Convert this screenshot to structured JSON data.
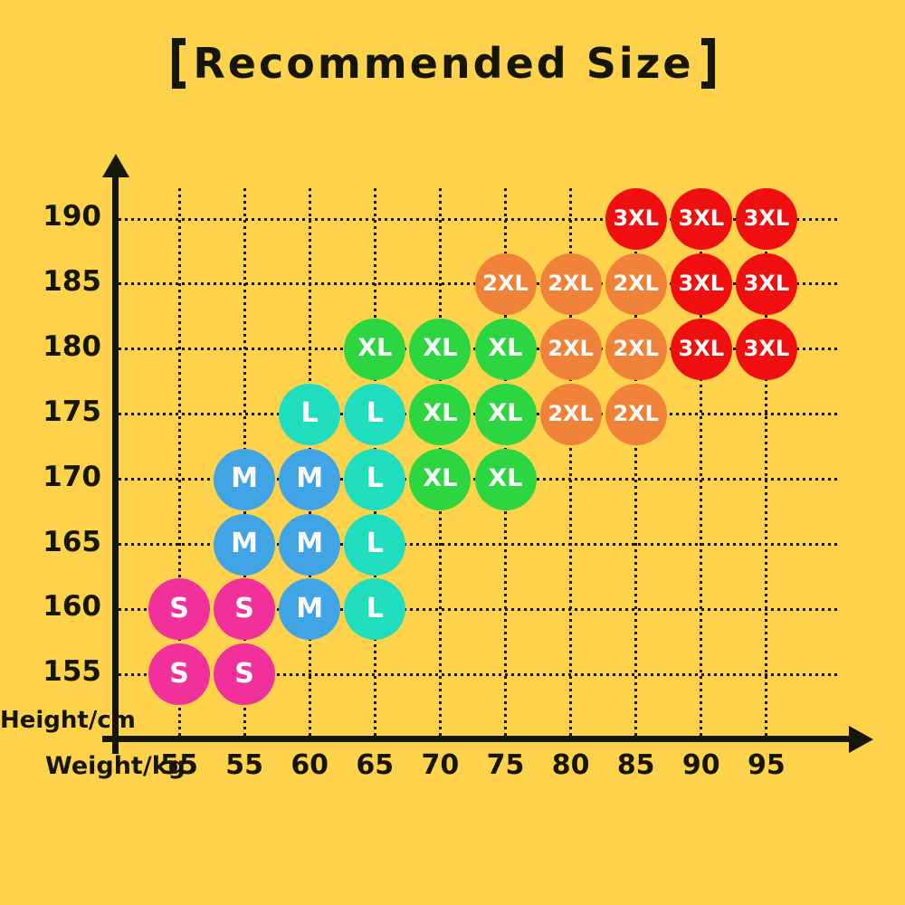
{
  "title": {
    "full": "【Recommended Size】",
    "display": "Recommended Size"
  },
  "axis_labels": {
    "y": "Height/cm",
    "x": "Weight/kg"
  },
  "colors": {
    "background": "#FFD24C",
    "ink": "#161606",
    "dot_text": "#FFFFFF",
    "S": "#F1309B",
    "M": "#41A5E5",
    "L": "#1FDEBE",
    "XL": "#2BD641",
    "2XL": "#EF8238",
    "3XL": "#F00F0F"
  },
  "chart_data": {
    "type": "scatter",
    "title": "【Recommended Size】",
    "xlabel": "Weight/kg",
    "ylabel": "Height/cm",
    "grid": true,
    "legend_position": "none",
    "x_tick_labels": [
      "55",
      "55",
      "60",
      "65",
      "70",
      "75",
      "80",
      "85",
      "90",
      "95"
    ],
    "y_tick_labels": [
      190,
      185,
      180,
      175,
      170,
      165,
      160,
      155
    ],
    "y_range": [
      155,
      190
    ],
    "sizes": [
      "S",
      "M",
      "L",
      "XL",
      "2XL",
      "3XL"
    ],
    "points": [
      {
        "height": 190,
        "col": 7,
        "weight": "85",
        "size": "3XL"
      },
      {
        "height": 190,
        "col": 8,
        "weight": "90",
        "size": "3XL"
      },
      {
        "height": 190,
        "col": 9,
        "weight": "95",
        "size": "3XL"
      },
      {
        "height": 185,
        "col": 5,
        "weight": "75",
        "size": "2XL"
      },
      {
        "height": 185,
        "col": 6,
        "weight": "80",
        "size": "2XL"
      },
      {
        "height": 185,
        "col": 7,
        "weight": "85",
        "size": "2XL"
      },
      {
        "height": 185,
        "col": 8,
        "weight": "90",
        "size": "3XL"
      },
      {
        "height": 185,
        "col": 9,
        "weight": "95",
        "size": "3XL"
      },
      {
        "height": 180,
        "col": 3,
        "weight": "65",
        "size": "XL"
      },
      {
        "height": 180,
        "col": 4,
        "weight": "70",
        "size": "XL"
      },
      {
        "height": 180,
        "col": 5,
        "weight": "75",
        "size": "XL"
      },
      {
        "height": 180,
        "col": 6,
        "weight": "80",
        "size": "2XL"
      },
      {
        "height": 180,
        "col": 7,
        "weight": "85",
        "size": "2XL"
      },
      {
        "height": 180,
        "col": 8,
        "weight": "90",
        "size": "3XL"
      },
      {
        "height": 180,
        "col": 9,
        "weight": "95",
        "size": "3XL"
      },
      {
        "height": 175,
        "col": 2,
        "weight": "60",
        "size": "L"
      },
      {
        "height": 175,
        "col": 3,
        "weight": "65",
        "size": "L"
      },
      {
        "height": 175,
        "col": 4,
        "weight": "70",
        "size": "XL"
      },
      {
        "height": 175,
        "col": 5,
        "weight": "75",
        "size": "XL"
      },
      {
        "height": 175,
        "col": 6,
        "weight": "80",
        "size": "2XL"
      },
      {
        "height": 175,
        "col": 7,
        "weight": "85",
        "size": "2XL"
      },
      {
        "height": 170,
        "col": 1,
        "weight": "55",
        "size": "M"
      },
      {
        "height": 170,
        "col": 2,
        "weight": "60",
        "size": "M"
      },
      {
        "height": 170,
        "col": 3,
        "weight": "65",
        "size": "L"
      },
      {
        "height": 170,
        "col": 4,
        "weight": "70",
        "size": "XL"
      },
      {
        "height": 170,
        "col": 5,
        "weight": "75",
        "size": "XL"
      },
      {
        "height": 165,
        "col": 1,
        "weight": "55",
        "size": "M"
      },
      {
        "height": 165,
        "col": 2,
        "weight": "60",
        "size": "M"
      },
      {
        "height": 165,
        "col": 3,
        "weight": "65",
        "size": "L"
      },
      {
        "height": 160,
        "col": 0,
        "weight": "55",
        "size": "S"
      },
      {
        "height": 160,
        "col": 1,
        "weight": "55",
        "size": "S"
      },
      {
        "height": 160,
        "col": 2,
        "weight": "60",
        "size": "M"
      },
      {
        "height": 160,
        "col": 3,
        "weight": "65",
        "size": "L"
      },
      {
        "height": 155,
        "col": 0,
        "weight": "55",
        "size": "S"
      },
      {
        "height": 155,
        "col": 1,
        "weight": "55",
        "size": "S"
      }
    ]
  }
}
